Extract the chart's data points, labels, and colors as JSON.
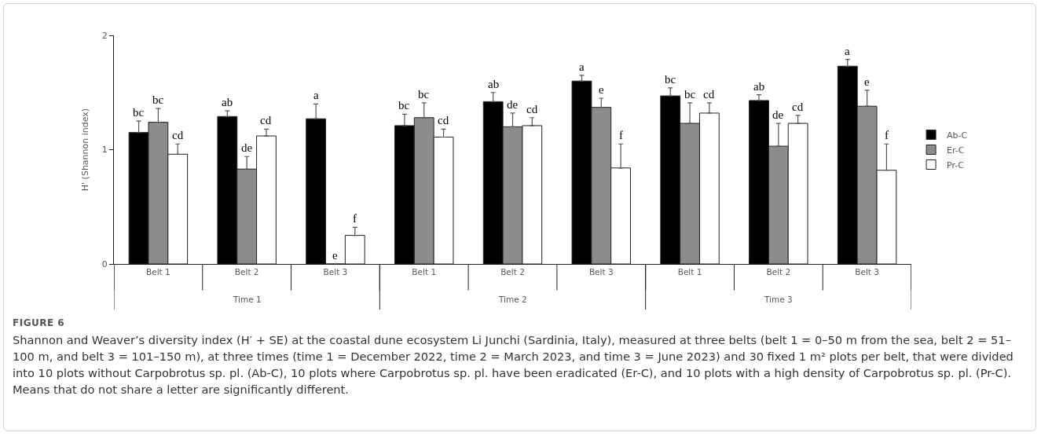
{
  "chart_data": {
    "type": "bar",
    "ylabel": "H' (Shannon index)",
    "categories": [
      "Belt 1",
      "Belt 2",
      "Belt 3",
      "Belt 1",
      "Belt 2",
      "Belt 3",
      "Belt 1",
      "Belt 2",
      "Belt 3"
    ],
    "series": [
      {
        "name": "Ab-C",
        "color": "#000000",
        "values": [
          1.15,
          1.29,
          1.27,
          1.21,
          1.42,
          1.6,
          1.47,
          1.43,
          1.73
        ],
        "errors": [
          0.1,
          0.05,
          0.13,
          0.1,
          0.08,
          0.05,
          0.07,
          0.05,
          0.06
        ],
        "value_labels": [
          "bc",
          "ab",
          "a",
          "bc",
          "ab",
          "a",
          "bc",
          "ab",
          "a"
        ]
      },
      {
        "name": "Er-C",
        "color": "#8c8c8c",
        "values": [
          1.24,
          0.83,
          0,
          1.28,
          1.2,
          1.37,
          1.23,
          1.03,
          1.38
        ],
        "errors": [
          0.12,
          0.11,
          null,
          0.13,
          0.12,
          0.08,
          0.18,
          0.2,
          0.14
        ],
        "value_labels": [
          "bc",
          "de",
          "e",
          "bc",
          "de",
          "e",
          "bc",
          "de",
          "e"
        ]
      },
      {
        "name": "Pr-C",
        "color": "#ffffff",
        "values": [
          0.96,
          1.12,
          0.25,
          1.11,
          1.21,
          0.84,
          1.32,
          1.23,
          0.82
        ],
        "errors": [
          0.09,
          0.06,
          0.07,
          0.07,
          0.07,
          0.21,
          0.09,
          0.07,
          0.23
        ],
        "value_labels": [
          "cd",
          "cd",
          "f",
          "cd",
          "cd",
          "f",
          "cd",
          "cd",
          "f"
        ]
      }
    ],
    "ylim": [
      0,
      2
    ],
    "yticks": [
      0,
      1,
      2
    ],
    "grid": false,
    "legend": "right",
    "annotations": [
      "Time 1",
      "Time 2",
      "Time 3",
      "FIGURE 6",
      "Shannon and Weaver’s diversity index (H′ + SE) at the coastal dune ecosystem Li Junchi (Sardinia, Italy), measured at three belts (belt 1 = 0–50 m from the sea, belt 2 = 51–100 m, and belt 3 = 101–150 m), at three times (time 1 = December 2022, time 2 = March 2023, and time 3 = June 2023) and 30 fixed 1 m² plots per belt, that were divided into 10 plots without Carpobrotus sp. pl. (Ab-C), 10 plots where Carpobrotus sp. pl. have been eradicated (Er-C), and 10 plots with a high density of Carpobrotus sp. pl. (Pr-C). Means that do not share a letter are significantly different."
    ]
  }
}
